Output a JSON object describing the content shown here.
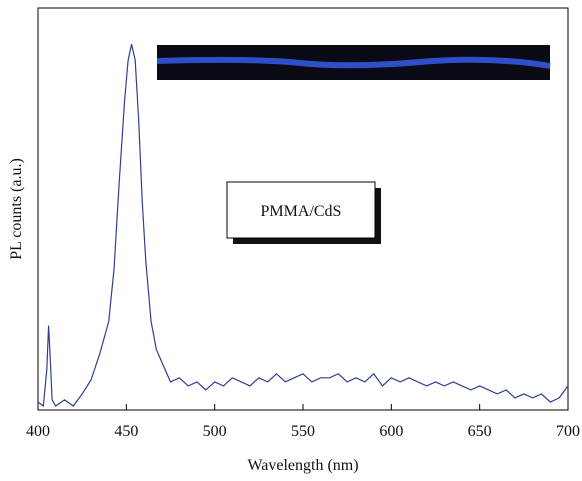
{
  "chart_data": {
    "type": "line",
    "x_label": "Wavelength (nm)",
    "y_label": "PL counts (a.u.)",
    "annotation": "PMMA/CdS",
    "color": "#2e3f8f",
    "x": [
      400,
      403,
      405,
      406,
      407,
      408,
      410,
      415,
      420,
      425,
      430,
      435,
      440,
      443,
      446,
      449,
      451,
      453,
      455,
      457,
      459,
      461,
      464,
      467,
      470,
      475,
      480,
      485,
      490,
      495,
      500,
      505,
      510,
      515,
      520,
      525,
      530,
      535,
      540,
      545,
      550,
      555,
      560,
      565,
      570,
      575,
      580,
      585,
      590,
      595,
      600,
      605,
      610,
      615,
      620,
      625,
      630,
      635,
      640,
      645,
      650,
      655,
      660,
      665,
      670,
      675,
      680,
      685,
      690,
      695,
      700
    ],
    "values": [
      2,
      1,
      10,
      21,
      12,
      2.5,
      1,
      2.5,
      1,
      4,
      7.5,
      14,
      22,
      35,
      57,
      77,
      87,
      91,
      87,
      72,
      52,
      37,
      22,
      15,
      12,
      7,
      8,
      6,
      7,
      5,
      7,
      6,
      8,
      7,
      6,
      8,
      7,
      9,
      7,
      8,
      9,
      7,
      8,
      8,
      9,
      7,
      8,
      7,
      9,
      6,
      8,
      7,
      8,
      7,
      6,
      7,
      6,
      7,
      6,
      5,
      6,
      5,
      4,
      5,
      3,
      4,
      3,
      4,
      2,
      3,
      6
    ],
    "xlim": [
      400,
      700
    ],
    "ylim": [
      0,
      100
    ],
    "xticks": [
      400,
      450,
      500,
      550,
      600,
      650,
      700
    ]
  }
}
